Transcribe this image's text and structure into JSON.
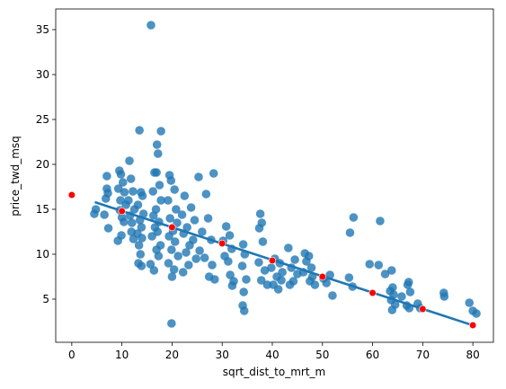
{
  "chart_data": {
    "type": "scatter",
    "xlabel": "sqrt_dist_to_mrt_m",
    "ylabel": "price_twd_msq",
    "xlim": [
      -3.2,
      84.1
    ],
    "ylim": [
      0.2,
      37.3
    ],
    "xticks": [
      0,
      10,
      20,
      30,
      40,
      50,
      60,
      70,
      80
    ],
    "yticks": [
      5,
      10,
      15,
      20,
      25,
      30,
      35
    ],
    "series": [
      {
        "color": "#1f77b4",
        "x": [
          4.5,
          4.8,
          7,
          7,
          7.2,
          6.8,
          6.5,
          7.3,
          9.5,
          9.8,
          10.2,
          9.3,
          10.5,
          9.7,
          10.8,
          9.6,
          10.0,
          10.4,
          9.9,
          9.2,
          11.5,
          11.8,
          12.2,
          11.3,
          12.5,
          11.6,
          12.0,
          11.9,
          12.3,
          13.5,
          13.8,
          14.1,
          13.2,
          14.3,
          13.6,
          13.9,
          13.1,
          14.0,
          13.4,
          13.7,
          13.3,
          13.9,
          15.8,
          17.0,
          17.2,
          16.5,
          17.5,
          16.2,
          17.8,
          16.8,
          16.3,
          17.4,
          16.6,
          17.1,
          16.0,
          17.7,
          16.9,
          17.3,
          16.4,
          15.7,
          17.8,
          16.9,
          19.5,
          19.8,
          20.5,
          19.2,
          20.8,
          19.6,
          21.0,
          20.2,
          19.4,
          20.6,
          19.9,
          21.2,
          19.3,
          20.4,
          20.0,
          19.9,
          22.5,
          23.8,
          22.0,
          24.5,
          23.0,
          22.3,
          24.2,
          23.5,
          22.8,
          24.8,
          23.3,
          22.2,
          25.3,
          26.8,
          27.2,
          26.0,
          27.8,
          25.5,
          26.5,
          28.0,
          27.4,
          28.5,
          28.3,
          30.8,
          31.5,
          30.2,
          31.9,
          30.5,
          31.2,
          31.6,
          32.3,
          32.0,
          34.2,
          34.5,
          34.0,
          34.8,
          34.3,
          34.1,
          34.4,
          37.6,
          37.9,
          37.4,
          38.1,
          37.3,
          38.5,
          37.8,
          39.0,
          40.5,
          41.5,
          39.8,
          42.0,
          40.9,
          41.8,
          40.2,
          41.2,
          43.2,
          44.5,
          43.8,
          45.0,
          44.2,
          43.5,
          46.5,
          47.3,
          46.8,
          47.8,
          46.2,
          48.0,
          47.5,
          48.5,
          50.2,
          50.8,
          51.5,
          52.0,
          55.5,
          56.2,
          55.3,
          56.0,
          59.4,
          61.2,
          61.5,
          62.5,
          63.8,
          64.0,
          63.5,
          64.2,
          63.7,
          64.5,
          63.9,
          65.8,
          67.2,
          67.0,
          67.5,
          66.8,
          67.3,
          69.0,
          69.5,
          74.2,
          74.3,
          79.3,
          80.0,
          80.7
        ],
        "values": [
          14.5,
          15.0,
          18.7,
          17.3,
          16.8,
          16.2,
          14.4,
          12.9,
          19.3,
          18.9,
          18.0,
          17.3,
          16.9,
          16.0,
          15.5,
          14.9,
          14.1,
          13.6,
          12.1,
          11.5,
          20.4,
          18.4,
          17.0,
          16.0,
          15.0,
          14.3,
          13.5,
          12.5,
          11.7,
          23.8,
          16.9,
          16.5,
          15.5,
          14.5,
          13.8,
          13.0,
          12.3,
          11.8,
          11.0,
          10.0,
          9.0,
          8.7,
          35.5,
          22.2,
          21.2,
          19.1,
          17.7,
          17.0,
          16.0,
          15.0,
          14.3,
          13.6,
          13.0,
          12.5,
          12.0,
          11.0,
          10.5,
          9.8,
          8.2,
          8.9,
          23.7,
          19.1,
          18.8,
          18.2,
          17.2,
          16.0,
          15.0,
          14.0,
          13.5,
          12.6,
          12.0,
          11.4,
          10.5,
          9.8,
          9.0,
          8.3,
          7.5,
          2.3,
          16.5,
          15.2,
          14.4,
          13.8,
          13.0,
          12.3,
          11.6,
          11.0,
          10.2,
          9.5,
          8.8,
          8.0,
          18.6,
          16.7,
          14.0,
          12.5,
          11.6,
          10.4,
          9.6,
          8.8,
          7.5,
          7.2,
          19.0,
          13.1,
          12.1,
          11.5,
          10.6,
          9.8,
          9.2,
          7.7,
          7.0,
          6.5,
          11.1,
          10.0,
          8.7,
          7.2,
          5.8,
          4.3,
          3.7,
          14.5,
          13.5,
          12.9,
          11.4,
          9.1,
          8.2,
          7.1,
          6.6,
          9.5,
          9.0,
          8.5,
          8.0,
          7.5,
          7.1,
          6.6,
          6.1,
          10.7,
          9.4,
          8.5,
          7.8,
          7.0,
          6.6,
          10.1,
          9.8,
          9.2,
          8.5,
          8.0,
          7.5,
          7.0,
          6.6,
          7.3,
          6.8,
          7.7,
          5.4,
          12.4,
          14.1,
          7.4,
          6.4,
          8.9,
          8.8,
          13.7,
          7.8,
          8.2,
          6.3,
          5.9,
          5.5,
          4.9,
          4.4,
          3.8,
          5.3,
          6.9,
          6.6,
          5.8,
          4.3,
          4.0,
          4.5,
          4.0,
          5.7,
          5.3,
          4.6,
          3.7,
          3.4
        ]
      },
      {
        "color": "#ff0000",
        "x": [
          0,
          10,
          20,
          30,
          40,
          50,
          60,
          70,
          80
        ],
        "values": [
          16.6,
          14.8,
          13.0,
          11.2,
          9.3,
          7.5,
          5.7,
          3.9,
          2.1
        ]
      }
    ],
    "regression_line": {
      "color": "#1f77b4",
      "x": [
        4.6,
        80.5
      ],
      "values": [
        15.8,
        2.0
      ]
    }
  }
}
